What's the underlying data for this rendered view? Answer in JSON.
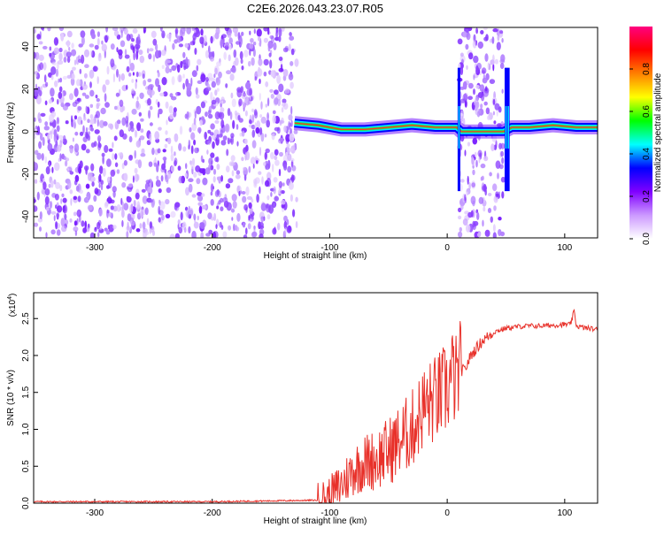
{
  "figure": {
    "title": "C2E6.2026.043.23.07.R05"
  },
  "chart_data": [
    {
      "type": "heatmap",
      "title": "C2E6.2026.043.23.07.R05",
      "xlabel": "Height of straight line (km)",
      "ylabel": "Frequency (Hz)",
      "xlim": [
        -352,
        128
      ],
      "ylim": [
        -50,
        49
      ],
      "xticks": [
        -300,
        -200,
        -100,
        0,
        100
      ],
      "yticks": [
        -40,
        -20,
        0,
        20,
        40
      ],
      "colorbar": {
        "label": "Normalized spectral amplitude",
        "range": [
          0,
          1
        ],
        "ticks": [
          "0.0",
          "0.2",
          "0.4",
          "0.6",
          "0.8"
        ],
        "colors": [
          "#ffffff",
          "#cc99ff",
          "#8000ff",
          "#0000ff",
          "#00ffff",
          "#00ff00",
          "#ffff00",
          "#ff8000",
          "#ff0000",
          "#ff0080"
        ]
      },
      "noise_regions_km": [
        [
          -352,
          -128
        ],
        [
          10,
          48
        ]
      ],
      "signal_track": {
        "x": [
          -130,
          -110,
          -90,
          -70,
          -50,
          -30,
          -10,
          8,
          12,
          48,
          55,
          70,
          90,
          110,
          128
        ],
        "y": [
          4,
          3,
          1,
          1,
          2,
          3,
          2,
          2,
          0,
          0,
          2,
          2,
          3,
          2,
          2
        ]
      },
      "vertical_features_km": [
        10,
        50,
        52
      ]
    },
    {
      "type": "line",
      "xlabel": "Height of straight line (km)",
      "ylabel": "SNR (10 * v/v)",
      "yscale_label": "(x10",
      "yscale_exponent": "4",
      "xlim": [
        -352,
        128
      ],
      "ylim": [
        0,
        2.85
      ],
      "xticks": [
        -300,
        -200,
        -100,
        0,
        100
      ],
      "yticks": [
        "0.0",
        "0.5",
        "1.0",
        "1.5",
        "2.0",
        "2.5"
      ],
      "series": [
        {
          "color": "#e8312a",
          "x": [
            -352,
            -200,
            -110,
            -100,
            -90,
            -80,
            -70,
            -60,
            -50,
            -40,
            -30,
            -20,
            -10,
            0,
            5,
            8,
            10,
            15,
            20,
            25,
            30,
            40,
            50,
            60,
            70,
            80,
            90,
            100,
            105,
            108,
            110,
            115,
            128
          ],
          "y": [
            0.02,
            0.02,
            0.04,
            0.08,
            0.25,
            0.45,
            0.55,
            0.6,
            0.7,
            0.85,
            1.0,
            1.3,
            1.4,
            1.55,
            1.75,
            1.6,
            1.8,
            1.8,
            2.0,
            2.1,
            2.2,
            2.32,
            2.37,
            2.39,
            2.4,
            2.4,
            2.41,
            2.42,
            2.42,
            2.6,
            2.4,
            2.38,
            2.35
          ]
        }
      ]
    }
  ]
}
